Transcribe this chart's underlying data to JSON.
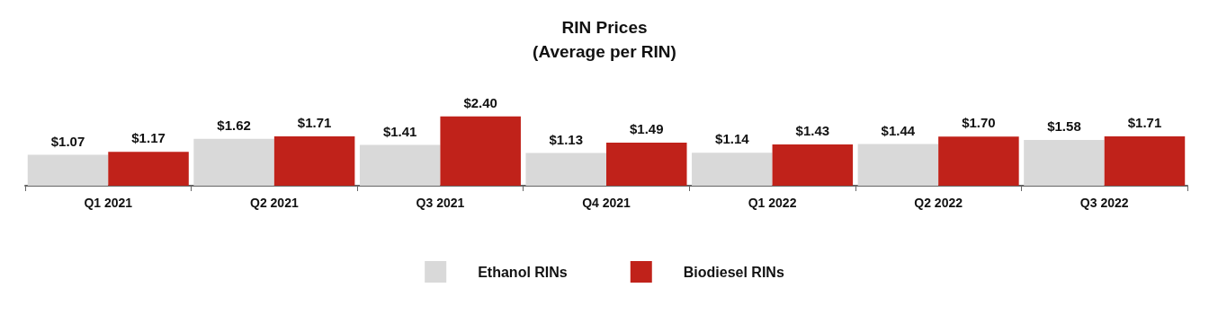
{
  "chart_data": {
    "type": "bar",
    "title": "RIN Prices\n(Average per RIN)",
    "categories": [
      "Q1 2021",
      "Q2 2021",
      "Q3 2021",
      "Q4 2021",
      "Q1 2022",
      "Q2 2022",
      "Q3 2022"
    ],
    "series": [
      {
        "name": "Ethanol RINs",
        "color": "#d9d9d9",
        "values": [
          1.07,
          1.62,
          1.41,
          1.13,
          1.14,
          1.44,
          1.58
        ],
        "value_labels": [
          "$1.07",
          "$1.62",
          "$1.41",
          "$1.13",
          "$1.14",
          "$1.44",
          "$1.58"
        ]
      },
      {
        "name": "Biodiesel RINs",
        "color": "#c0221a",
        "values": [
          1.17,
          1.71,
          2.4,
          1.49,
          1.43,
          1.7,
          1.71
        ],
        "value_labels": [
          "$1.17",
          "$1.71",
          "$2.40",
          "$1.49",
          "$1.43",
          "$1.70",
          "$1.71"
        ]
      }
    ],
    "grid": false,
    "legend": "bottom"
  }
}
